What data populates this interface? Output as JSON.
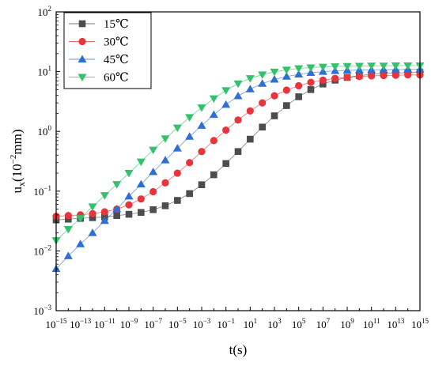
{
  "chart_data": {
    "type": "scatter",
    "title": "",
    "xlabel": "t(s)",
    "ylabel": "u",
    "ylabel_sub": "x",
    "ylabel_unit": "(10",
    "ylabel_unit_sup": "−2",
    "ylabel_unit_tail": "mm)",
    "x_scale": "log",
    "y_scale": "log",
    "xlim_exp": [
      -15,
      15
    ],
    "ylim_exp": [
      -3,
      2
    ],
    "x_ticks": [
      {
        "base": "10",
        "exp": "−15"
      },
      {
        "base": "10",
        "exp": "−13"
      },
      {
        "base": "10",
        "exp": "−11"
      },
      {
        "base": "10",
        "exp": "−9"
      },
      {
        "base": "10",
        "exp": "−7"
      },
      {
        "base": "10",
        "exp": "−5"
      },
      {
        "base": "10",
        "exp": "−3"
      },
      {
        "base": "10",
        "exp": "−1"
      },
      {
        "base": "10",
        "exp": "1"
      },
      {
        "base": "10",
        "exp": "3"
      },
      {
        "base": "10",
        "exp": "5"
      },
      {
        "base": "10",
        "exp": "7"
      },
      {
        "base": "10",
        "exp": "9"
      },
      {
        "base": "10",
        "exp": "11"
      },
      {
        "base": "10",
        "exp": "13"
      },
      {
        "base": "10",
        "exp": "15"
      }
    ],
    "y_ticks": [
      {
        "base": "10",
        "exp": "−3"
      },
      {
        "base": "10",
        "exp": "−2"
      },
      {
        "base": "10",
        "exp": "−1"
      },
      {
        "base": "10",
        "exp": "0"
      },
      {
        "base": "10",
        "exp": "1"
      },
      {
        "base": "10",
        "exp": "2"
      }
    ],
    "grid": false,
    "legend_position": "top-left",
    "x_exp": [
      -15,
      -14,
      -13,
      -12,
      -11,
      -10,
      -9,
      -8,
      -7,
      -6,
      -5,
      -4,
      -3,
      -2,
      -1,
      0,
      1,
      2,
      3,
      4,
      5,
      6,
      7,
      8,
      9,
      10,
      11,
      12,
      13,
      14,
      15
    ],
    "series": [
      {
        "name": "15℃",
        "marker": "square",
        "color": "#4d4d4d",
        "values": [
          0.033,
          0.034,
          0.035,
          0.036,
          0.037,
          0.039,
          0.041,
          0.044,
          0.049,
          0.057,
          0.07,
          0.091,
          0.128,
          0.188,
          0.29,
          0.46,
          0.74,
          1.18,
          1.82,
          2.7,
          3.8,
          5.0,
          6.2,
          7.2,
          8.0,
          8.6,
          9.0,
          9.3,
          9.5,
          9.6,
          9.7
        ]
      },
      {
        "name": "30℃",
        "marker": "circle",
        "color": "#e8343a",
        "values": [
          0.038,
          0.039,
          0.04,
          0.042,
          0.045,
          0.05,
          0.059,
          0.074,
          0.098,
          0.138,
          0.2,
          0.3,
          0.46,
          0.7,
          1.05,
          1.55,
          2.2,
          3.0,
          3.95,
          4.9,
          5.8,
          6.6,
          7.2,
          7.7,
          8.0,
          8.3,
          8.5,
          8.6,
          8.7,
          8.8,
          8.8
        ]
      },
      {
        "name": "45℃",
        "marker": "triangle-up",
        "color": "#2f6fd1",
        "values": [
          0.005,
          0.0082,
          0.013,
          0.02,
          0.032,
          0.05,
          0.082,
          0.13,
          0.21,
          0.33,
          0.52,
          0.82,
          1.25,
          1.9,
          2.8,
          3.9,
          5.1,
          6.3,
          7.4,
          8.3,
          9.0,
          9.6,
          10.0,
          10.3,
          10.5,
          10.6,
          10.7,
          10.8,
          10.8,
          10.9,
          10.9
        ]
      },
      {
        "name": "60℃",
        "marker": "triangle-down",
        "color": "#33c26b",
        "values": [
          0.015,
          0.023,
          0.035,
          0.055,
          0.085,
          0.13,
          0.2,
          0.31,
          0.49,
          0.76,
          1.15,
          1.72,
          2.5,
          3.55,
          4.85,
          6.3,
          7.7,
          8.9,
          9.9,
          10.7,
          11.3,
          11.7,
          12.0,
          12.2,
          12.3,
          12.4,
          12.5,
          12.5,
          12.6,
          12.6,
          12.6
        ]
      }
    ]
  }
}
